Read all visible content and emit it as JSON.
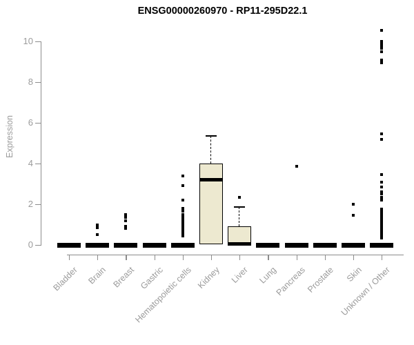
{
  "chart_data": {
    "type": "boxplot",
    "title": "ENSG00000260970 - RP11-295D22.1",
    "ylabel": "Expression",
    "xlabel": "",
    "ylim": [
      0,
      10.7
    ],
    "yticks": [
      0,
      2,
      4,
      6,
      8,
      10
    ],
    "grid": false,
    "legend": false,
    "colors": {
      "box_fill": "#ede9d0",
      "box_stroke": "#000000",
      "axis": "#8c8c8c",
      "tick_text": "#9b9b9b",
      "title_text": "#000000"
    },
    "categories": [
      "Bladder",
      "Brain",
      "Breast",
      "Gastric",
      "Hematopoietic cells",
      "Kidney",
      "Liver",
      "Lung",
      "Pancreas",
      "Prostate",
      "Skin",
      "Unknown / Other"
    ],
    "series": [
      {
        "category": "Bladder",
        "q1": 0,
        "median": 0,
        "q3": 0,
        "whisker_low": 0,
        "whisker_high": 0,
        "outliers": []
      },
      {
        "category": "Brain",
        "q1": 0,
        "median": 0,
        "q3": 0,
        "whisker_low": 0,
        "whisker_high": 0,
        "outliers": [
          1.0,
          0.85,
          0.5
        ]
      },
      {
        "category": "Breast",
        "q1": 0,
        "median": 0,
        "q3": 0,
        "whisker_low": 0,
        "whisker_high": 0,
        "outliers": [
          1.5,
          1.35,
          1.2,
          0.9,
          0.8
        ]
      },
      {
        "category": "Gastric",
        "q1": 0,
        "median": 0,
        "q3": 0,
        "whisker_low": 0,
        "whisker_high": 0,
        "outliers": []
      },
      {
        "category": "Hematopoietic cells",
        "q1": 0,
        "median": 0,
        "q3": 0,
        "whisker_low": 0,
        "whisker_high": 0,
        "outliers": [
          3.4,
          2.9,
          2.2,
          1.8,
          1.65,
          1.5,
          1.35,
          1.25,
          1.15,
          1.05,
          0.95,
          0.85,
          0.75,
          0.65,
          0.55,
          0.45
        ]
      },
      {
        "category": "Kidney",
        "q1": 0.05,
        "median": 3.2,
        "q3": 4.0,
        "whisker_low": 0,
        "whisker_high": 5.35,
        "outliers": []
      },
      {
        "category": "Liver",
        "q1": 0,
        "median": 0.05,
        "q3": 0.9,
        "whisker_low": 0,
        "whisker_high": 1.85,
        "outliers": [
          2.35
        ]
      },
      {
        "category": "Lung",
        "q1": 0,
        "median": 0,
        "q3": 0,
        "whisker_low": 0,
        "whisker_high": 0,
        "outliers": []
      },
      {
        "category": "Pancreas",
        "q1": 0,
        "median": 0,
        "q3": 0,
        "whisker_low": 0,
        "whisker_high": 0,
        "outliers": [
          3.85
        ]
      },
      {
        "category": "Prostate",
        "q1": 0,
        "median": 0,
        "q3": 0,
        "whisker_low": 0,
        "whisker_high": 0,
        "outliers": []
      },
      {
        "category": "Skin",
        "q1": 0,
        "median": 0,
        "q3": 0,
        "whisker_low": 0,
        "whisker_high": 0,
        "outliers": [
          2.0,
          1.45
        ]
      },
      {
        "category": "Unknown / Other",
        "q1": 0,
        "median": 0,
        "q3": 0,
        "whisker_low": 0,
        "whisker_high": 0,
        "outliers": [
          10.55,
          10.0,
          9.85,
          9.75,
          9.65,
          9.5,
          9.1,
          8.95,
          5.45,
          5.2,
          3.45,
          3.1,
          2.85,
          2.6,
          2.5,
          2.35,
          2.2,
          1.75,
          1.65,
          1.55,
          1.45,
          1.35,
          1.25,
          1.15,
          1.05,
          0.95,
          0.85,
          0.75,
          0.65,
          0.55,
          0.45,
          0.35
        ]
      }
    ]
  }
}
